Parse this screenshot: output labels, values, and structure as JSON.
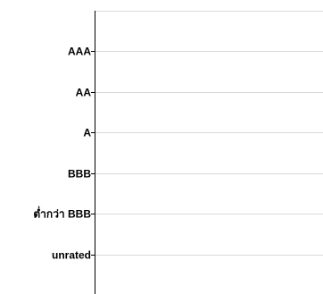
{
  "chart_data": {
    "type": "bar",
    "orientation": "horizontal",
    "categories": [
      "AAA",
      "AA",
      "A",
      "BBB",
      "ต่ำกว่า BBB",
      "unrated"
    ],
    "series": [
      {
        "values": [
          null,
          null,
          null,
          null,
          null,
          null
        ]
      }
    ],
    "grid": true,
    "legend": "none",
    "colors": {
      "axis": "#000000",
      "grid": "#d9d9d9",
      "label": "#000000"
    }
  }
}
